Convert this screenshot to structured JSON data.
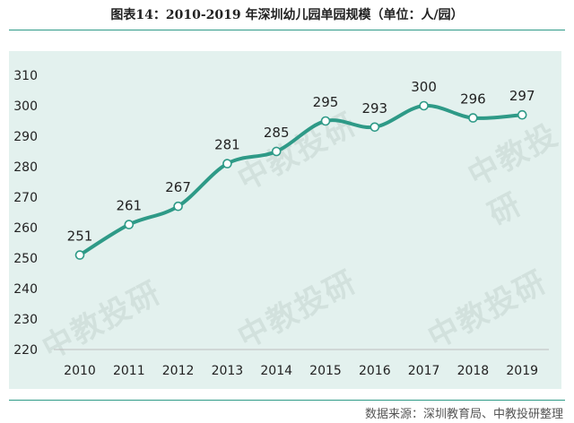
{
  "title": "图表14：2010-2019 年深圳幼儿园单园规模（单位：人/园）",
  "source": "数据来源：深圳教育局、中教投研整理",
  "watermark": "中教投研",
  "colors": {
    "line": "#2e9a87",
    "background": "#e3f1ee",
    "rule": "#2e9a87"
  },
  "chart_data": {
    "type": "line",
    "categories": [
      "2010",
      "2011",
      "2012",
      "2013",
      "2014",
      "2015",
      "2016",
      "2017",
      "2018",
      "2019"
    ],
    "values": [
      251,
      261,
      267,
      281,
      285,
      295,
      293,
      300,
      296,
      297
    ],
    "ylim": [
      220,
      310
    ],
    "yticks": [
      220,
      230,
      240,
      250,
      260,
      270,
      280,
      290,
      300,
      310
    ],
    "grid": false,
    "legend": "none",
    "data_labels": [
      "251",
      "261",
      "267",
      "281",
      "285",
      "295",
      "293",
      "300",
      "296",
      "297"
    ]
  }
}
